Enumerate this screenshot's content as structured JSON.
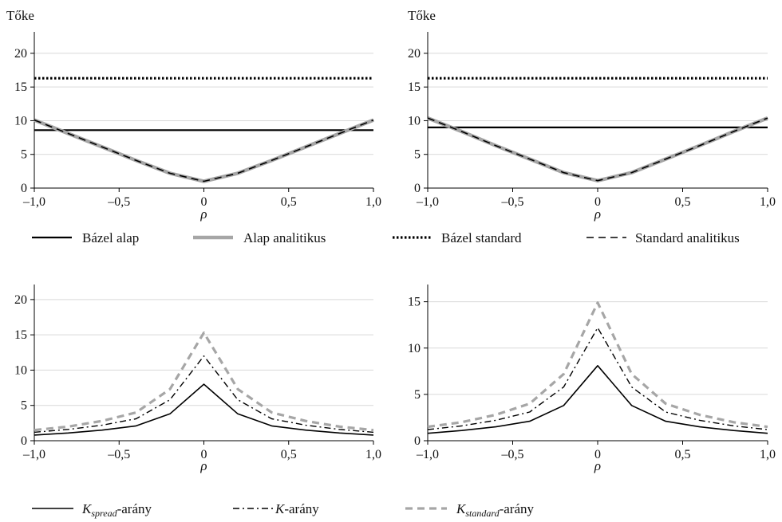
{
  "legend_top": [
    {
      "label": "Bázel alap",
      "color": "#000000",
      "dash": "",
      "width": 2.2
    },
    {
      "label": "Alap analitikus",
      "color": "#a6a6a6",
      "dash": "",
      "width": 4.5
    },
    {
      "label": "Bázel standard",
      "color": "#000000",
      "dash": "2.5 2.5",
      "width": 3.2
    },
    {
      "label": "Standard analitikus",
      "color": "#000000",
      "dash": "9 6",
      "width": 1.6
    }
  ],
  "legend_bottom": [
    {
      "label_main": "K",
      "label_sub": "spread",
      "label_tail": "-arány",
      "color": "#000000",
      "dash": "",
      "width": 1.6
    },
    {
      "label_main": "K",
      "label_sub": "",
      "label_tail": "-arány",
      "color": "#000000",
      "dash": "8 4 2 4",
      "width": 1.4
    },
    {
      "label_main": "K",
      "label_sub": "standard",
      "label_tail": "-arány",
      "color": "#a6a6a6",
      "dash": "9 6",
      "width": 3.2
    }
  ],
  "chart_data": [
    {
      "type": "line",
      "ylabel": "Tőke",
      "xlabel": "ρ",
      "xlim": [
        -1,
        1
      ],
      "ylim": [
        0,
        22
      ],
      "yticks": [
        0,
        5,
        10,
        15,
        20
      ],
      "xticks": [
        -1,
        -0.5,
        0,
        0.5,
        1
      ],
      "xtick_labels": [
        "–1,0",
        "–0,5",
        "0",
        "0,5",
        "1,0"
      ],
      "ytick_labels": [
        "0",
        "5",
        "10",
        "15",
        "20"
      ],
      "grid": "horizontal",
      "x": [
        -1,
        -0.8,
        -0.6,
        -0.4,
        -0.2,
        0,
        0.2,
        0.4,
        0.6,
        0.8,
        1
      ],
      "series": [
        {
          "name": "Bázel alap",
          "values": [
            8.6,
            8.6,
            8.6,
            8.6,
            8.6,
            8.6,
            8.6,
            8.6,
            8.6,
            8.6,
            8.6
          ]
        },
        {
          "name": "Alap analitikus",
          "values": [
            10.1,
            8.1,
            6.1,
            4.1,
            2.2,
            1.0,
            2.2,
            4.1,
            6.1,
            8.1,
            10.1
          ]
        },
        {
          "name": "Bázel standard",
          "values": [
            16.3,
            16.3,
            16.3,
            16.3,
            16.3,
            16.3,
            16.3,
            16.3,
            16.3,
            16.3,
            16.3
          ]
        },
        {
          "name": "Standard analitikus",
          "values": [
            10.1,
            8.1,
            6.1,
            4.1,
            2.2,
            1.0,
            2.2,
            4.1,
            6.1,
            8.1,
            10.1
          ]
        }
      ]
    },
    {
      "type": "line",
      "ylabel": "Tőke",
      "xlabel": "ρ",
      "xlim": [
        -1,
        1
      ],
      "ylim": [
        0,
        22
      ],
      "yticks": [
        0,
        5,
        10,
        15,
        20
      ],
      "xticks": [
        -1,
        -0.5,
        0,
        0.5,
        1
      ],
      "xtick_labels": [
        "–1,0",
        "–0,5",
        "0",
        "0,5",
        "1,0"
      ],
      "ytick_labels": [
        "0",
        "5",
        "10",
        "15",
        "20"
      ],
      "grid": "horizontal",
      "x": [
        -1,
        -0.8,
        -0.6,
        -0.4,
        -0.2,
        0,
        0.2,
        0.4,
        0.6,
        0.8,
        1
      ],
      "series": [
        {
          "name": "Bázel alap",
          "values": [
            9.0,
            9.0,
            9.0,
            9.0,
            9.0,
            9.0,
            9.0,
            9.0,
            9.0,
            9.0,
            9.0
          ]
        },
        {
          "name": "Alap analitikus",
          "values": [
            10.4,
            8.4,
            6.3,
            4.3,
            2.3,
            1.1,
            2.3,
            4.3,
            6.3,
            8.4,
            10.4
          ]
        },
        {
          "name": "Bázel standard",
          "values": [
            16.3,
            16.3,
            16.3,
            16.3,
            16.3,
            16.3,
            16.3,
            16.3,
            16.3,
            16.3,
            16.3
          ]
        },
        {
          "name": "Standard analitikus",
          "values": [
            10.4,
            8.4,
            6.3,
            4.3,
            2.3,
            1.1,
            2.3,
            4.3,
            6.3,
            8.4,
            10.4
          ]
        }
      ]
    },
    {
      "type": "line",
      "ylabel": "",
      "xlabel": "ρ",
      "xlim": [
        -1,
        1
      ],
      "ylim": [
        0,
        21
      ],
      "yticks": [
        0,
        5,
        10,
        15,
        20
      ],
      "xticks": [
        -1,
        -0.5,
        0,
        0.5,
        1
      ],
      "xtick_labels": [
        "–1,0",
        "–0,5",
        "0",
        "0,5",
        "1,0"
      ],
      "ytick_labels": [
        "0",
        "5",
        "10",
        "15",
        "20"
      ],
      "grid": "horizontal",
      "x": [
        -1,
        -0.8,
        -0.6,
        -0.4,
        -0.2,
        0,
        0.2,
        0.4,
        0.6,
        0.8,
        1
      ],
      "series": [
        {
          "name": "K spread-arány",
          "values": [
            0.8,
            1.1,
            1.5,
            2.1,
            3.8,
            8.0,
            3.8,
            2.1,
            1.5,
            1.1,
            0.8
          ]
        },
        {
          "name": "K-arány",
          "values": [
            1.2,
            1.6,
            2.2,
            3.1,
            5.8,
            12.0,
            5.8,
            3.1,
            2.2,
            1.6,
            1.2
          ]
        },
        {
          "name": "K standard-arány",
          "values": [
            1.5,
            2.0,
            2.8,
            4.0,
            7.3,
            15.3,
            7.3,
            4.0,
            2.8,
            2.0,
            1.5
          ]
        }
      ]
    },
    {
      "type": "line",
      "ylabel": "",
      "xlabel": "ρ",
      "xlim": [
        -1,
        1
      ],
      "ylim": [
        0,
        16
      ],
      "yticks": [
        0,
        5,
        10,
        15
      ],
      "xticks": [
        -1,
        -0.5,
        0,
        0.5,
        1
      ],
      "xtick_labels": [
        "–1,0",
        "–0,5",
        "0",
        "0,5",
        "1,0"
      ],
      "ytick_labels": [
        "0",
        "5",
        "10",
        "15"
      ],
      "grid": "horizontal",
      "x": [
        -1,
        -0.8,
        -0.6,
        -0.4,
        -0.2,
        0,
        0.2,
        0.4,
        0.6,
        0.8,
        1
      ],
      "series": [
        {
          "name": "K spread-arány",
          "values": [
            0.8,
            1.1,
            1.5,
            2.1,
            3.8,
            8.1,
            3.8,
            2.1,
            1.5,
            1.1,
            0.8
          ]
        },
        {
          "name": "K-arány",
          "values": [
            1.2,
            1.6,
            2.2,
            3.1,
            5.8,
            12.2,
            5.8,
            3.1,
            2.2,
            1.6,
            1.2
          ]
        },
        {
          "name": "K standard-arány",
          "values": [
            1.5,
            2.0,
            2.8,
            4.0,
            7.2,
            14.9,
            7.2,
            4.0,
            2.8,
            2.0,
            1.5
          ]
        }
      ]
    }
  ]
}
